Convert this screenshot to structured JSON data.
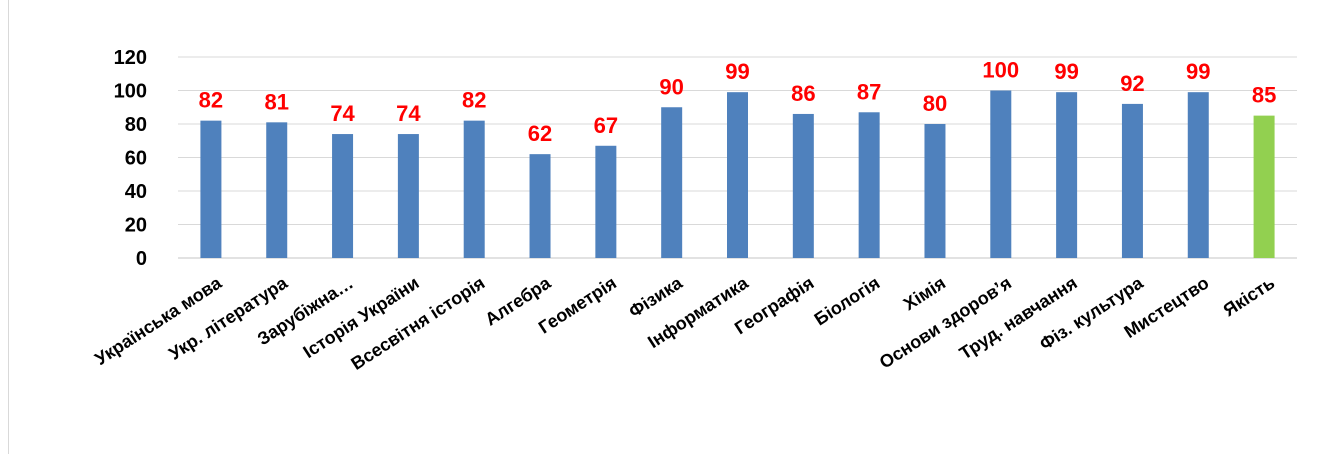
{
  "chart_data": {
    "type": "bar",
    "categories": [
      "Українська  мова",
      "Укр. література",
      "Зарубіжна…",
      "Історія України",
      "Всесвітня історія",
      "Алгебра",
      "Геометрія",
      "Фізика",
      "Інформатика",
      "Географія",
      "Біологія",
      "Хімія",
      "Основи здоров’я",
      "Труд. навчання",
      "Фіз. культура",
      "Мистецтво",
      "Якість"
    ],
    "values": [
      82,
      81,
      74,
      74,
      82,
      62,
      67,
      90,
      99,
      86,
      87,
      80,
      100,
      99,
      92,
      99,
      85
    ],
    "data_labels": [
      "82",
      "81",
      "74",
      "74",
      "82",
      "62",
      "67",
      "90",
      "99",
      "86",
      "87",
      "80",
      "100",
      "99",
      "92",
      "99",
      "85"
    ],
    "yticks": [
      "0",
      "20",
      "40",
      "60",
      "80",
      "100",
      "120"
    ],
    "ylim": [
      0,
      120
    ],
    "title": "",
    "xlabel": "",
    "ylabel": "",
    "grid": true,
    "legend": "none",
    "colors": {
      "bar": "#4f81bd",
      "highlight": "#92d050",
      "highlight_category": "Якість",
      "label": "#ff0000",
      "grid": "#d9d9d9"
    }
  }
}
